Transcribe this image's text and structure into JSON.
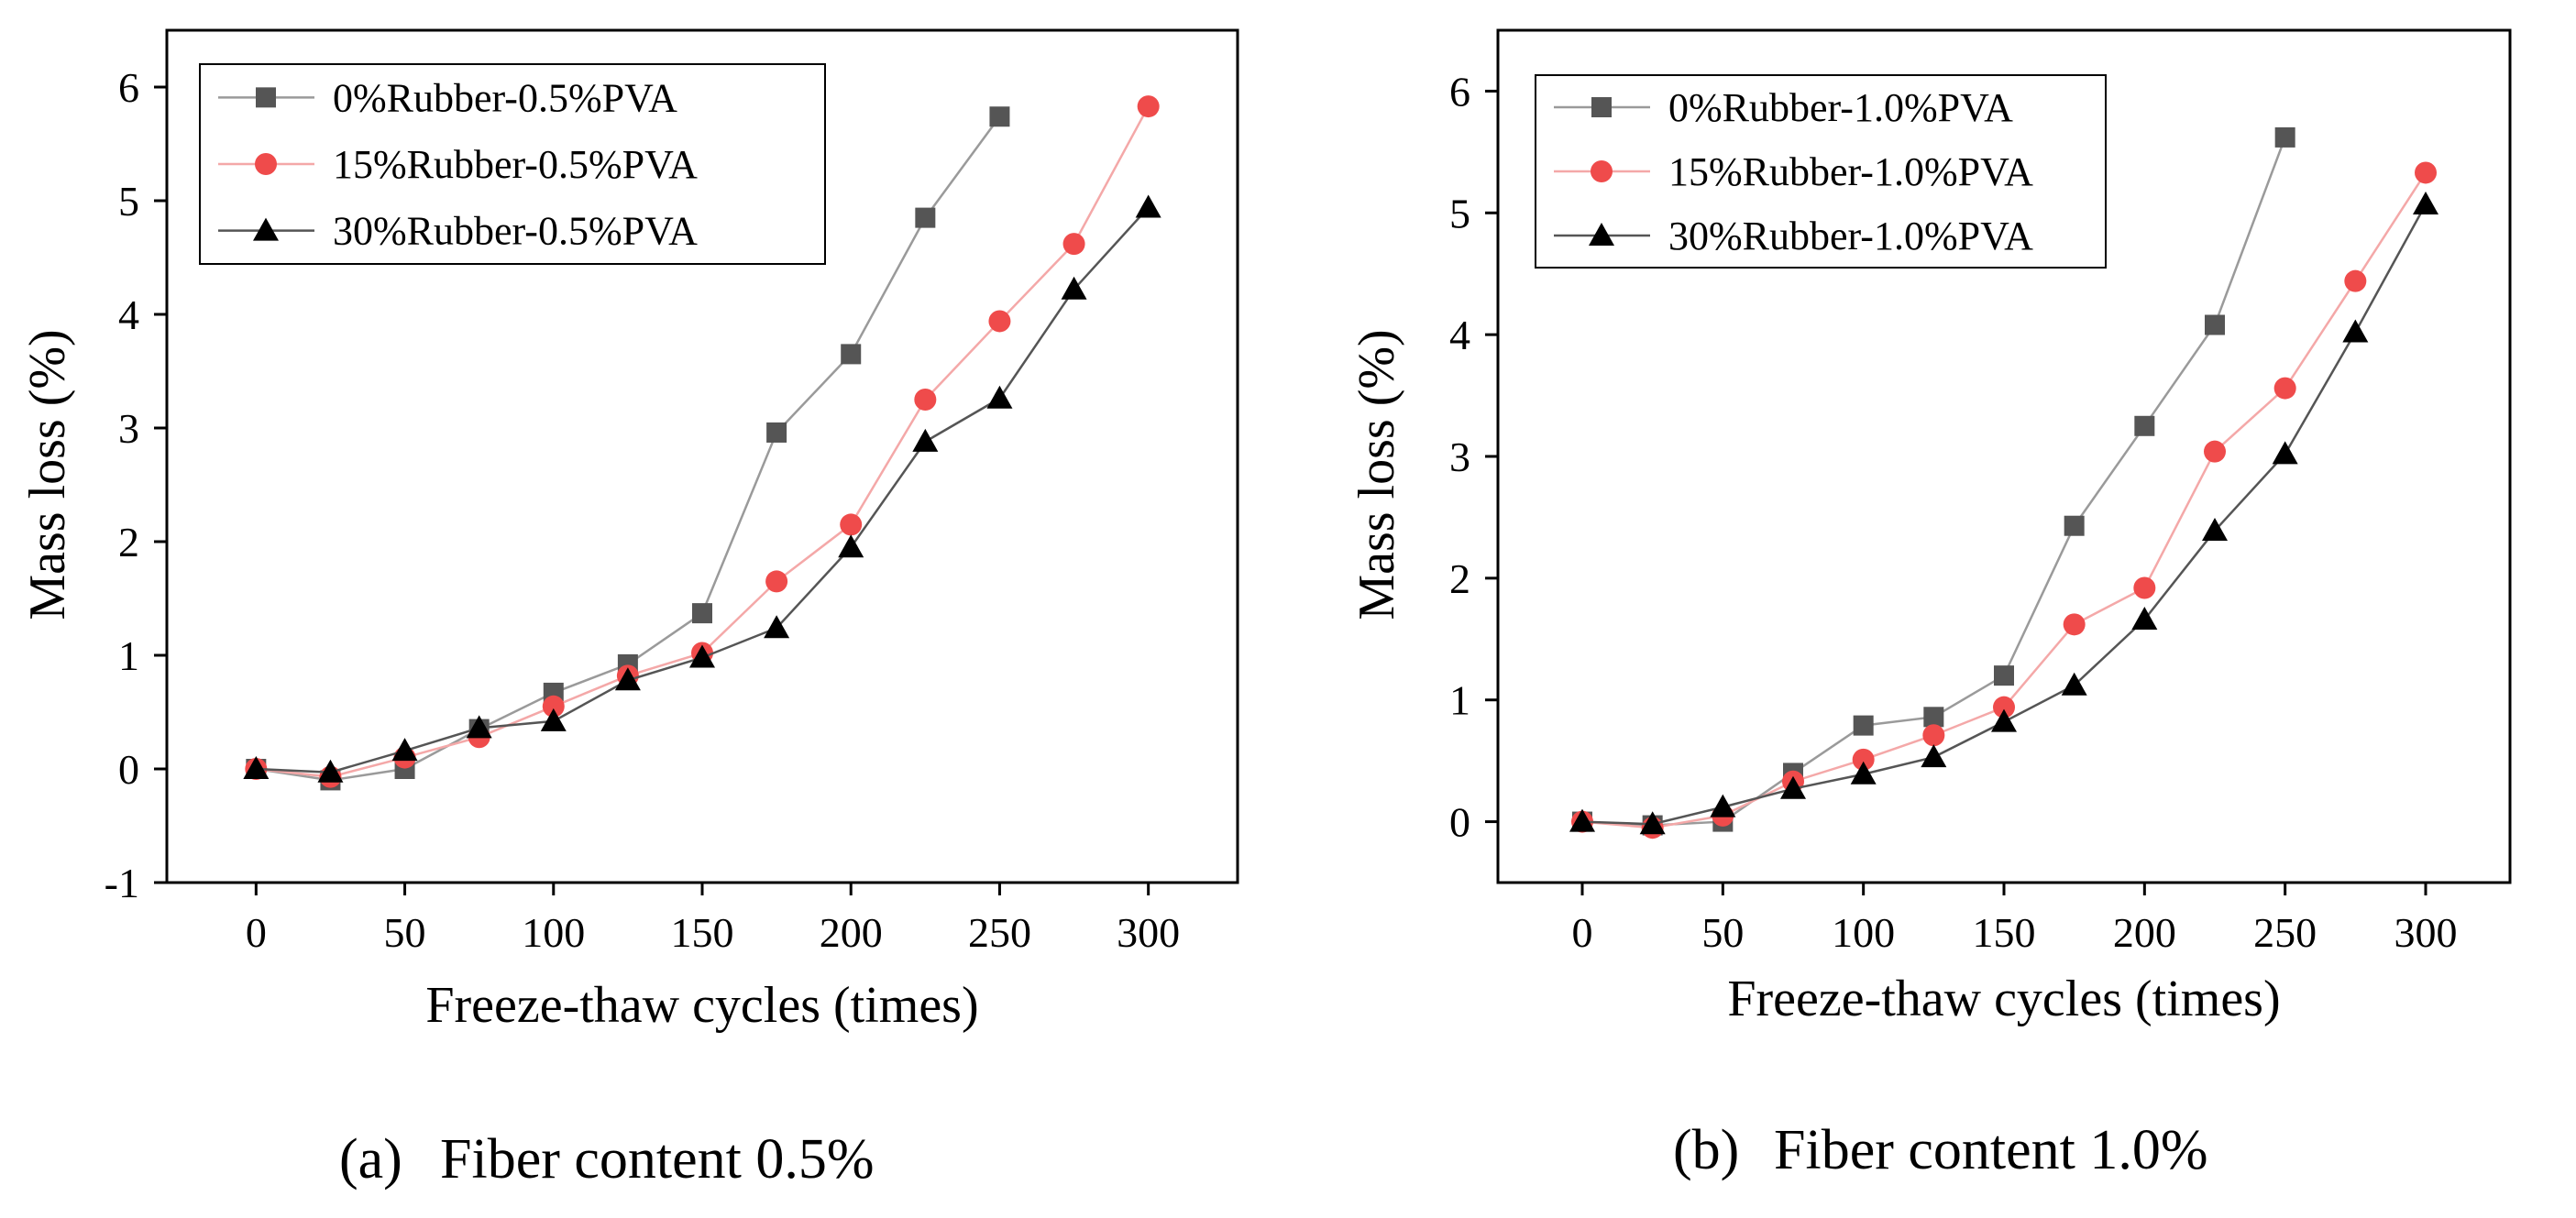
{
  "chart_data": [
    {
      "type": "line",
      "panel": "a",
      "caption_letter": "(a)",
      "caption_text": "Fiber content 0.5%",
      "xlabel": "Freeze-thaw cycles (times)",
      "ylabel": "Mass loss (%)",
      "xlim": [
        -30,
        330
      ],
      "ylim": [
        -1,
        6.5
      ],
      "xticks": [
        0,
        50,
        100,
        150,
        200,
        250,
        300
      ],
      "yticks": [
        -1,
        0,
        1,
        2,
        3,
        4,
        5,
        6
      ],
      "legend_position": "top-left",
      "series": [
        {
          "name": "0%Rubber-0.5%PVA",
          "marker": "square",
          "color": "#555555",
          "line_color": "#9a9a9a",
          "x": [
            0,
            25,
            50,
            75,
            100,
            125,
            150,
            175,
            200,
            225,
            250
          ],
          "values": [
            0.0,
            -0.1,
            0.0,
            0.35,
            0.67,
            0.92,
            1.37,
            2.96,
            3.65,
            4.85,
            5.74
          ]
        },
        {
          "name": "15%Rubber-0.5%PVA",
          "marker": "circle",
          "color": "#ef4b4b",
          "line_color": "#f4a8a8",
          "x": [
            0,
            25,
            50,
            75,
            100,
            125,
            150,
            175,
            200,
            225,
            250,
            275,
            300
          ],
          "values": [
            0.0,
            -0.07,
            0.1,
            0.28,
            0.55,
            0.82,
            1.02,
            1.65,
            2.15,
            3.25,
            3.94,
            4.62,
            5.83
          ]
        },
        {
          "name": "30%Rubber-0.5%PVA",
          "marker": "triangle",
          "color": "#000000",
          "line_color": "#555555",
          "x": [
            0,
            25,
            50,
            75,
            100,
            125,
            150,
            175,
            200,
            225,
            250,
            275,
            300
          ],
          "values": [
            0.0,
            -0.03,
            0.16,
            0.36,
            0.42,
            0.78,
            0.98,
            1.24,
            1.95,
            2.88,
            3.26,
            4.22,
            4.94
          ]
        }
      ]
    },
    {
      "type": "line",
      "panel": "b",
      "caption_letter": "(b)",
      "caption_text": "Fiber content 1.0%",
      "xlabel": "Freeze-thaw cycles (times)",
      "ylabel": "Mass loss (%)",
      "xlim": [
        -30,
        330
      ],
      "ylim": [
        -0.5,
        6.5
      ],
      "xticks": [
        0,
        50,
        100,
        150,
        200,
        250,
        300
      ],
      "yticks": [
        0,
        1,
        2,
        3,
        4,
        5,
        6
      ],
      "legend_position": "top-left",
      "series": [
        {
          "name": "0%Rubber-1.0%PVA",
          "marker": "square",
          "color": "#555555",
          "line_color": "#9a9a9a",
          "x": [
            0,
            25,
            50,
            75,
            100,
            125,
            150,
            175,
            200,
            225,
            250
          ],
          "values": [
            0.0,
            -0.03,
            0.0,
            0.4,
            0.79,
            0.86,
            1.2,
            2.43,
            3.25,
            4.08,
            5.62
          ]
        },
        {
          "name": "15%Rubber-1.0%PVA",
          "marker": "circle",
          "color": "#ef4b4b",
          "line_color": "#f4a8a8",
          "x": [
            0,
            25,
            50,
            75,
            100,
            125,
            150,
            175,
            200,
            225,
            250,
            275,
            300
          ],
          "values": [
            0.0,
            -0.05,
            0.05,
            0.33,
            0.51,
            0.71,
            0.94,
            1.62,
            1.92,
            3.04,
            3.56,
            4.44,
            5.33
          ]
        },
        {
          "name": "30%Rubber-1.0%PVA",
          "marker": "triangle",
          "color": "#000000",
          "line_color": "#555555",
          "x": [
            0,
            25,
            50,
            75,
            100,
            125,
            150,
            175,
            200,
            225,
            250,
            275,
            300
          ],
          "values": [
            0.0,
            -0.02,
            0.12,
            0.27,
            0.39,
            0.53,
            0.82,
            1.12,
            1.66,
            2.39,
            3.02,
            4.02,
            5.07
          ]
        }
      ]
    }
  ]
}
